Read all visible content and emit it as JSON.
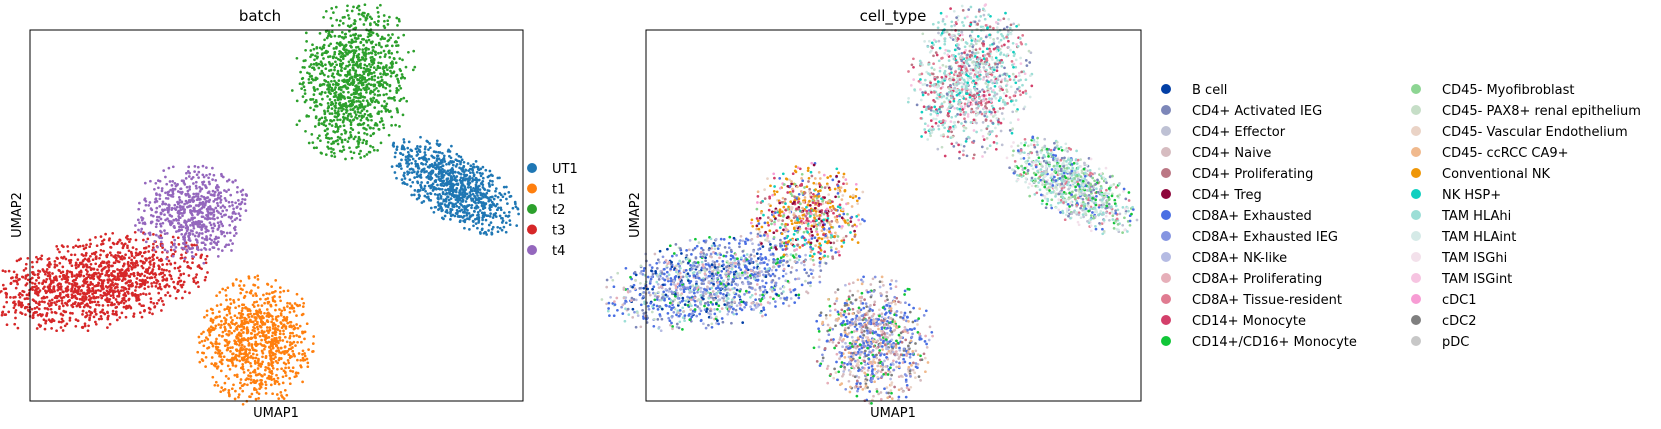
{
  "chart_data": [
    {
      "type": "scatter",
      "title": "batch",
      "xlabel": "UMAP1",
      "ylabel": "UMAP2",
      "xticks": false,
      "yticks": false,
      "grid": false,
      "legend_placement": "right",
      "legend_columns": 1,
      "series": [
        {
          "name": "UT1",
          "color": "#1f77b4",
          "clusters": [
            {
              "center": [
                0.86,
                0.42
              ],
              "spread": [
                0.072,
                0.045
              ],
              "rotation_deg": 32,
              "n": 900
            }
          ]
        },
        {
          "name": "t1",
          "color": "#ff7f0e",
          "clusters": [
            {
              "center": [
                0.46,
                0.84
              ],
              "spread": [
                0.058,
                0.085
              ],
              "rotation_deg": 0,
              "n": 900
            }
          ]
        },
        {
          "name": "t2",
          "color": "#2ca02c",
          "clusters": [
            {
              "center": [
                0.655,
                0.135
              ],
              "spread": [
                0.06,
                0.105
              ],
              "rotation_deg": 12,
              "n": 1100
            }
          ]
        },
        {
          "name": "t3",
          "color": "#d62728",
          "clusters": [
            {
              "center": [
                0.135,
                0.68
              ],
              "spread": [
                0.112,
                0.06
              ],
              "rotation_deg": -10,
              "n": 1300
            }
          ]
        },
        {
          "name": "t4",
          "color": "#9467bd",
          "clusters": [
            {
              "center": [
                0.33,
                0.495
              ],
              "spread": [
                0.058,
                0.065
              ],
              "rotation_deg": 0,
              "n": 650
            }
          ]
        }
      ]
    },
    {
      "type": "scatter",
      "title": "cell_type",
      "xlabel": "UMAP1",
      "ylabel": "UMAP2",
      "xticks": false,
      "yticks": false,
      "grid": false,
      "legend_placement": "right",
      "legend_columns": 2,
      "clusters": [
        {
          "center": [
            0.86,
            0.42
          ],
          "spread": [
            0.072,
            0.045
          ],
          "rotation_deg": 32,
          "n": 900,
          "mix": [
            "TAM HLAhi",
            "TAM HLAint",
            "CD45- Myofibroblast",
            "CD4+ Activated IEG",
            "CD8A+ Exhausted",
            "CD4+ Effector",
            "CD14+/CD16+ Monocyte",
            "CD45- PAX8+ renal epithelium",
            "TAM ISGhi",
            "CD8A+ Tissue-resident"
          ]
        },
        {
          "center": [
            0.46,
            0.84
          ],
          "spread": [
            0.058,
            0.085
          ],
          "rotation_deg": 0,
          "n": 900,
          "mix": [
            "CD8A+ Exhausted",
            "CD4+ Naive",
            "CD8A+ Exhausted IEG",
            "CD45- ccRCC CA9+",
            "CD4+ Proliferating",
            "CD14+/CD16+ Monocyte",
            "cDC2",
            "CD8A+ NK-like",
            "CD45- Vascular Endothelium",
            "CD8A+ Proliferating"
          ]
        },
        {
          "center": [
            0.655,
            0.135
          ],
          "spread": [
            0.06,
            0.105
          ],
          "rotation_deg": 12,
          "n": 1100,
          "mix": [
            "TAM HLAhi",
            "TAM HLAint",
            "CD8A+ Tissue-resident",
            "CD14+ Monocyte",
            "CD4+ Activated IEG",
            "NK HSP+",
            "CD4+ Effector",
            "TAM ISGint",
            "CD45- PAX8+ renal epithelium",
            "CD4+ Proliferating"
          ]
        },
        {
          "center": [
            0.135,
            0.68
          ],
          "spread": [
            0.112,
            0.06
          ],
          "rotation_deg": -10,
          "n": 1300,
          "mix": [
            "CD8A+ Exhausted",
            "CD8A+ Exhausted IEG",
            "CD4+ Activated IEG",
            "CD8A+ NK-like",
            "B cell",
            "TAM HLAhi",
            "CD4+ Naive",
            "CD8A+ Proliferating",
            "CD45- PAX8+ renal epithelium",
            "CD14+/CD16+ Monocyte"
          ]
        },
        {
          "center": [
            0.33,
            0.495
          ],
          "spread": [
            0.058,
            0.065
          ],
          "rotation_deg": 0,
          "n": 650,
          "mix": [
            "Conventional NK",
            "CD45- ccRCC CA9+",
            "CD14+ Monocyte",
            "CD4+ Treg",
            "CD45- Myofibroblast",
            "NK HSP+",
            "CD8A+ Exhausted",
            "cDC1",
            "CD45- Vascular Endothelium",
            "CD4+ Proliferating"
          ]
        }
      ],
      "legend": [
        {
          "name": "B cell",
          "color": "#023fa5"
        },
        {
          "name": "CD4+ Activated IEG",
          "color": "#7d87b9"
        },
        {
          "name": "CD4+ Effector",
          "color": "#bec1d4"
        },
        {
          "name": "CD4+ Naive",
          "color": "#d6bcc0"
        },
        {
          "name": "CD4+ Proliferating",
          "color": "#bb7784"
        },
        {
          "name": "CD4+ Treg",
          "color": "#8e063b"
        },
        {
          "name": "CD8A+ Exhausted",
          "color": "#4a6fe3"
        },
        {
          "name": "CD8A+ Exhausted IEG",
          "color": "#8595e1"
        },
        {
          "name": "CD8A+ NK-like",
          "color": "#b5bbe3"
        },
        {
          "name": "CD8A+ Proliferating",
          "color": "#e6afb9"
        },
        {
          "name": "CD8A+ Tissue-resident",
          "color": "#e07b91"
        },
        {
          "name": "CD14+ Monocyte",
          "color": "#d33f6a"
        },
        {
          "name": "CD14+/CD16+ Monocyte",
          "color": "#11c638"
        },
        {
          "name": "CD45- Myofibroblast",
          "color": "#8dd593"
        },
        {
          "name": "CD45- PAX8+ renal epithelium",
          "color": "#c6dec7"
        },
        {
          "name": "CD45- Vascular Endothelium",
          "color": "#ead3c6"
        },
        {
          "name": "CD45- ccRCC CA9+",
          "color": "#f0b98d"
        },
        {
          "name": "Conventional NK",
          "color": "#ef9708"
        },
        {
          "name": "NK HSP+",
          "color": "#0fcfc0"
        },
        {
          "name": "TAM HLAhi",
          "color": "#9cded6"
        },
        {
          "name": "TAM HLAint",
          "color": "#d5eae7"
        },
        {
          "name": "TAM ISGhi",
          "color": "#f3e1eb"
        },
        {
          "name": "TAM ISGint",
          "color": "#f6c4e1"
        },
        {
          "name": "cDC1",
          "color": "#f79cd4"
        },
        {
          "name": "cDC2",
          "color": "#7f7f7f"
        },
        {
          "name": "pDC",
          "color": "#c7c7c7"
        }
      ]
    }
  ]
}
